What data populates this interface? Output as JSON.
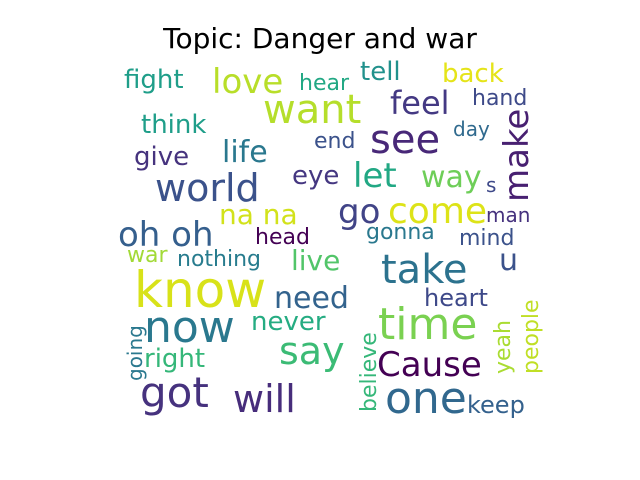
{
  "chart_data": {
    "type": "wordcloud",
    "title": "Topic: Danger and war",
    "words": [
      {
        "text": "know",
        "color": "#d8e219"
      },
      {
        "text": "now",
        "color": "#2a788e"
      },
      {
        "text": "time",
        "color": "#7ad151"
      },
      {
        "text": "want",
        "color": "#b5de2b"
      },
      {
        "text": "world",
        "color": "#3b528b"
      },
      {
        "text": "take",
        "color": "#2c728e"
      },
      {
        "text": "one",
        "color": "#31688e"
      },
      {
        "text": "got",
        "color": "#46327e"
      },
      {
        "text": "see",
        "color": "#482878"
      },
      {
        "text": "oh oh",
        "color": "#355f8d"
      },
      {
        "text": "say",
        "color": "#3bbb75"
      },
      {
        "text": "love",
        "color": "#b8de29"
      },
      {
        "text": "will",
        "color": "#472d7b"
      },
      {
        "text": "make",
        "color": "#482071"
      },
      {
        "text": "come",
        "color": "#dde318"
      },
      {
        "text": "let",
        "color": "#22a884"
      },
      {
        "text": "Cause",
        "color": "#440154"
      },
      {
        "text": "go",
        "color": "#414487"
      },
      {
        "text": "life",
        "color": "#2a788e"
      },
      {
        "text": "feel",
        "color": "#443983"
      },
      {
        "text": "way",
        "color": "#6ece58"
      },
      {
        "text": "na na",
        "color": "#d2e21b"
      },
      {
        "text": "need",
        "color": "#33638d"
      },
      {
        "text": "live",
        "color": "#52c569"
      },
      {
        "text": "fight",
        "color": "#1f9e89"
      },
      {
        "text": "back",
        "color": "#e5e419"
      },
      {
        "text": "tell",
        "color": "#21918c"
      },
      {
        "text": "think",
        "color": "#1f9e89"
      },
      {
        "text": "give",
        "color": "#46337e"
      },
      {
        "text": "never",
        "color": "#25ac82"
      },
      {
        "text": "right",
        "color": "#35b779"
      },
      {
        "text": "heart",
        "color": "#3e4989"
      },
      {
        "text": "u",
        "color": "#3b528b"
      },
      {
        "text": "eye",
        "color": "#453781"
      },
      {
        "text": "nothing",
        "color": "#287c8e"
      },
      {
        "text": "head",
        "color": "#440154"
      },
      {
        "text": "gonna",
        "color": "#2a788e"
      },
      {
        "text": "mind",
        "color": "#3b528b"
      },
      {
        "text": "man",
        "color": "#46327e"
      },
      {
        "text": "hand",
        "color": "#3e4a89"
      },
      {
        "text": "hear",
        "color": "#22a884"
      },
      {
        "text": "end",
        "color": "#3b528b"
      },
      {
        "text": "day",
        "color": "#306a8e"
      },
      {
        "text": "s",
        "color": "#3e4989"
      },
      {
        "text": "war",
        "color": "#a2da37"
      },
      {
        "text": "believe",
        "color": "#35b779"
      },
      {
        "text": "yeah",
        "color": "#aadc32"
      },
      {
        "text": "people",
        "color": "#c0df25"
      },
      {
        "text": "going",
        "color": "#2a788e"
      },
      {
        "text": "keep",
        "color": "#34618d"
      }
    ]
  }
}
